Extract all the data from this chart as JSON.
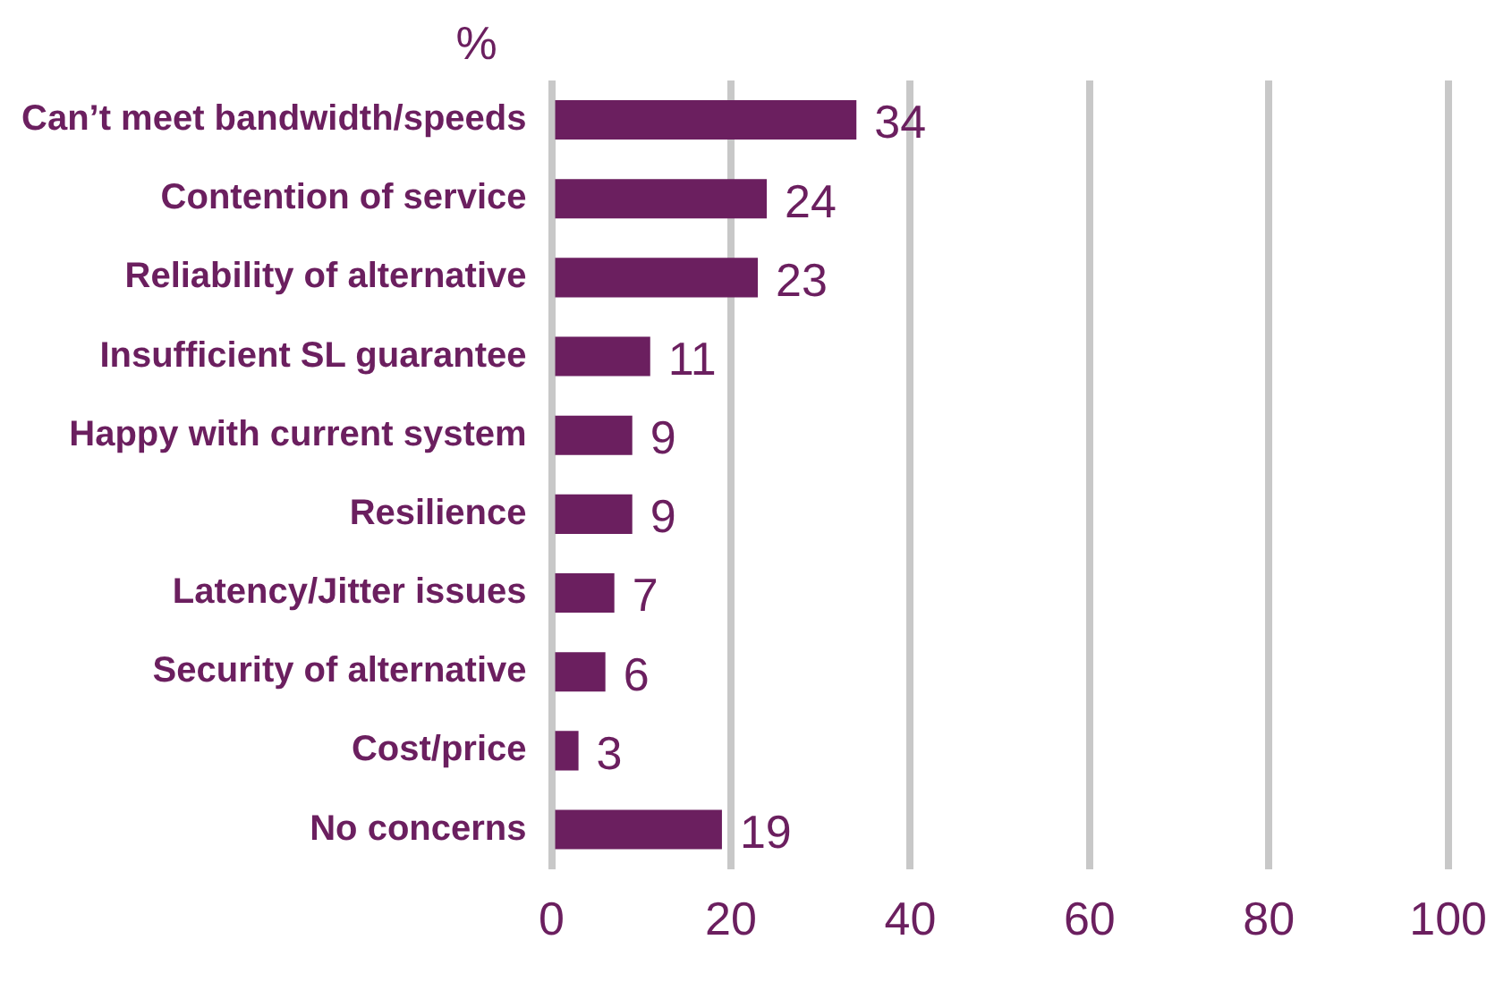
{
  "chart_data": {
    "type": "bar",
    "orientation": "horizontal",
    "xlabel": "%",
    "categories": [
      "Can’t meet bandwidth/speeds",
      "Contention of service",
      "Reliability of alternative",
      "Insufficient SL guarantee",
      "Happy with current system",
      "Resilience",
      "Latency/Jitter issues",
      "Security of alternative",
      "Cost/price",
      "No concerns"
    ],
    "values": [
      34,
      24,
      23,
      11,
      9,
      9,
      7,
      6,
      3,
      19
    ],
    "color": "#6b1f5f",
    "xlim": [
      0,
      100
    ],
    "xticks": [
      0,
      20,
      40,
      60,
      80,
      100
    ],
    "grid": "x",
    "legend": false,
    "data_labels": true
  }
}
